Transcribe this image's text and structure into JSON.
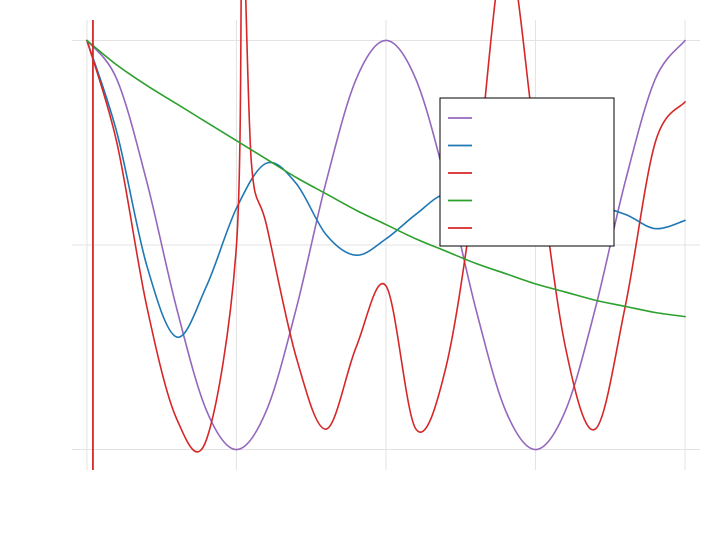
{
  "chart_data": {
    "type": "line",
    "title": "",
    "xlabel": "",
    "ylabel": "",
    "xlim": [
      -0.1,
      4.1
    ],
    "ylim": [
      -1.1,
      1.1
    ],
    "x_gridlines": [
      0,
      1,
      2,
      3,
      4
    ],
    "y_gridlines": [
      -1,
      0,
      1
    ],
    "grid": true,
    "legend_position": "upper-right",
    "vertical_marker": {
      "x": 0.04,
      "color": "#d62728"
    },
    "series": [
      {
        "color": "#9467bd",
        "x": [
          0,
          0.2,
          0.4,
          0.6,
          0.8,
          1.0,
          1.2,
          1.4,
          1.6,
          1.8,
          2.0,
          2.2,
          2.4,
          2.6,
          2.8,
          3.0,
          3.2,
          3.4,
          3.6,
          3.8,
          4.0
        ],
        "y": [
          1.0,
          0.81,
          0.31,
          -0.31,
          -0.81,
          -1.0,
          -0.81,
          -0.31,
          0.31,
          0.81,
          1.0,
          0.81,
          0.31,
          -0.31,
          -0.81,
          -1.0,
          -0.81,
          -0.31,
          0.31,
          0.81,
          1.0
        ]
      },
      {
        "color": "#1f77b4",
        "x": [
          0,
          0.2,
          0.4,
          0.6,
          0.8,
          1.0,
          1.2,
          1.4,
          1.6,
          1.8,
          2.0,
          2.2,
          2.4,
          2.6,
          2.8,
          3.0,
          3.2,
          3.4,
          3.6,
          3.8,
          4.0
        ],
        "y": [
          1.0,
          0.55,
          -0.1,
          -0.45,
          -0.2,
          0.18,
          0.4,
          0.3,
          0.05,
          -0.05,
          0.03,
          0.15,
          0.25,
          0.2,
          0.08,
          0.02,
          0.1,
          0.18,
          0.15,
          0.08,
          0.12
        ]
      },
      {
        "color": "#d62728",
        "x": [
          0,
          0.2,
          0.4,
          0.6,
          0.8,
          1.0,
          1.04,
          1.1,
          1.2,
          1.4,
          1.6,
          1.8,
          2.0,
          2.2,
          2.4,
          2.6,
          2.8,
          3.0,
          3.2,
          3.4,
          3.6,
          3.8,
          4.0
        ],
        "y": [
          1.0,
          0.5,
          -0.3,
          -0.85,
          -0.95,
          0.0,
          1.55,
          0.4,
          0.1,
          -0.55,
          -0.9,
          -0.5,
          -0.2,
          -0.9,
          -0.6,
          0.3,
          1.45,
          0.5,
          -0.5,
          -0.9,
          -0.3,
          0.5,
          0.7
        ]
      },
      {
        "color": "#2ca02c",
        "x": [
          0,
          0.2,
          0.4,
          0.6,
          0.8,
          1.0,
          1.2,
          1.4,
          1.6,
          1.8,
          2.0,
          2.2,
          2.4,
          2.6,
          2.8,
          3.0,
          3.2,
          3.4,
          3.6,
          3.8,
          4.0
        ],
        "y": [
          1.0,
          0.88,
          0.78,
          0.69,
          0.6,
          0.51,
          0.42,
          0.33,
          0.25,
          0.17,
          0.1,
          0.03,
          -0.03,
          -0.09,
          -0.14,
          -0.19,
          -0.23,
          -0.27,
          -0.3,
          -0.33,
          -0.35
        ]
      }
    ],
    "legend_colors": [
      "#9467bd",
      "#1f77b4",
      "#d62728",
      "#2ca02c",
      "#d62728"
    ]
  }
}
